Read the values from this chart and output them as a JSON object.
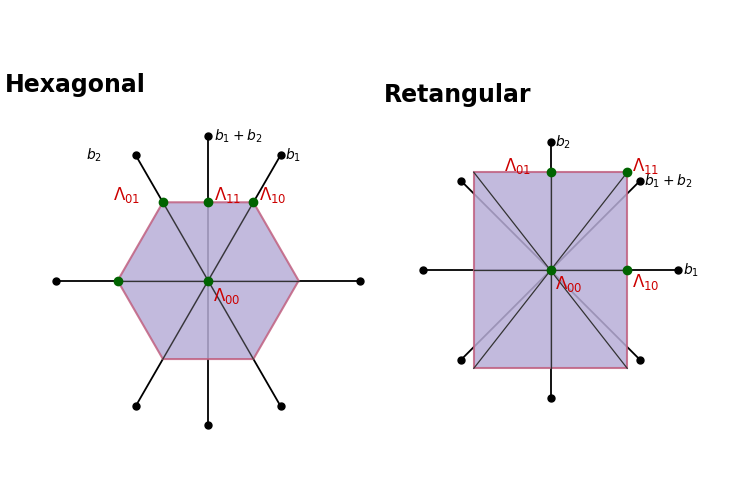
{
  "hex_title": "Hexagonal",
  "rect_title": "Retangular",
  "bg_color": "#ffffff",
  "panel_bg": "#ffffff",
  "border_color": "#000000",
  "hex_fill": "#b8aed8",
  "hex_edge": "#c06080",
  "rect_fill": "#b8aed8",
  "rect_edge": "#c06080",
  "green_dot_color": "#006400",
  "label_color_red": "#cc0000",
  "label_color_black": "#000000",
  "line_color": "#333333",
  "axis_color": "#000000"
}
